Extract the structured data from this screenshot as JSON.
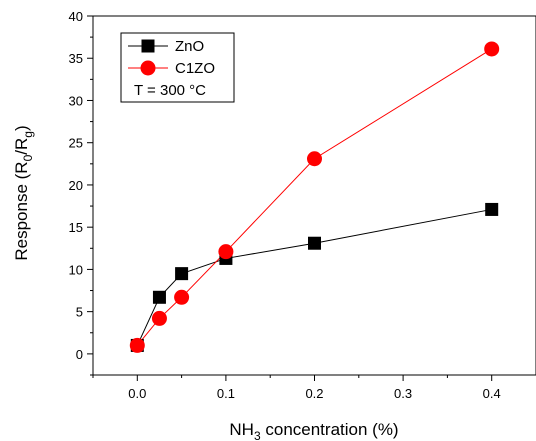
{
  "chart_data": {
    "type": "line",
    "title": "",
    "xlabel": {
      "base": "NH",
      "sub": "3",
      "rest": " concentration (%)"
    },
    "ylabel": {
      "base": "Response (R",
      "sub1": "0",
      "mid": "/R",
      "sub2": "g",
      "rest": ")"
    },
    "xlim": [
      -0.05,
      0.45
    ],
    "ylim": [
      -2.5,
      40
    ],
    "xticks": [
      0.0,
      0.1,
      0.2,
      0.3,
      0.4
    ],
    "xtick_labels": [
      "0.0",
      "0.1",
      "0.2",
      "0.3",
      "0.4"
    ],
    "yticks": [
      0,
      5,
      10,
      15,
      20,
      25,
      30,
      35,
      40
    ],
    "ytick_labels": [
      "0",
      "5",
      "10",
      "15",
      "20",
      "25",
      "30",
      "35",
      "40"
    ],
    "grid": false,
    "legend_position": "top-left",
    "annotation": "T = 300 °C",
    "series": [
      {
        "name": "ZnO",
        "marker": "square",
        "color": "#000000",
        "x": [
          0.0,
          0.025,
          0.05,
          0.1,
          0.2,
          0.4
        ],
        "y": [
          1.0,
          6.7,
          9.5,
          11.3,
          13.1,
          17.1
        ]
      },
      {
        "name": "C1ZO",
        "marker": "circle",
        "color": "#ff0000",
        "x": [
          0.0,
          0.025,
          0.05,
          0.1,
          0.2,
          0.4
        ],
        "y": [
          1.0,
          4.2,
          6.7,
          12.1,
          23.1,
          36.1
        ]
      }
    ]
  }
}
